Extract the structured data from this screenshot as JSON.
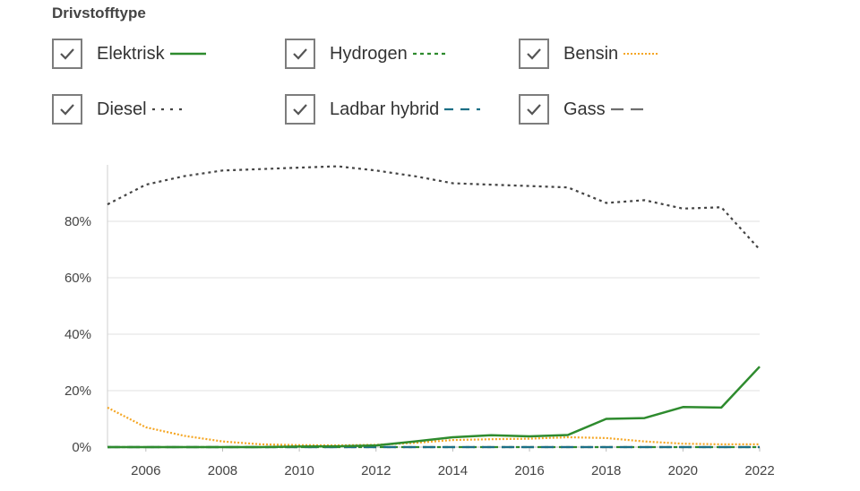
{
  "filter": {
    "title": "Drivstofftype",
    "items": [
      {
        "label": "Elektrisk",
        "checked": true
      },
      {
        "label": "Hydrogen",
        "checked": true
      },
      {
        "label": "Bensin",
        "checked": true
      },
      {
        "label": "Diesel",
        "checked": true
      },
      {
        "label": "Ladbar hybrid",
        "checked": true
      },
      {
        "label": "Gass",
        "checked": true
      }
    ]
  },
  "chart_data": {
    "type": "line",
    "x": [
      2005,
      2006,
      2007,
      2008,
      2009,
      2010,
      2011,
      2012,
      2013,
      2014,
      2015,
      2016,
      2017,
      2018,
      2019,
      2020,
      2021,
      2022
    ],
    "xticks": [
      "2006",
      "2008",
      "2010",
      "2012",
      "2014",
      "2016",
      "2018",
      "2020",
      "2022"
    ],
    "yticks": [
      "0%",
      "20%",
      "40%",
      "60%",
      "80%"
    ],
    "ylim": [
      0,
      100
    ],
    "grid": true,
    "legend_position": "top",
    "series": [
      {
        "name": "Elektrisk",
        "color": "#2e8b2e",
        "dash": "solid",
        "values": [
          0,
          0,
          0,
          0,
          0,
          0.2,
          0.3,
          0.6,
          2,
          3.5,
          4.2,
          3.8,
          4.3,
          10,
          10.3,
          14.2,
          14,
          28.5
        ]
      },
      {
        "name": "Hydrogen",
        "color": "#2e8b2e",
        "dash": "dash",
        "values": [
          0,
          0,
          0,
          0,
          0,
          0,
          0,
          0,
          0,
          0,
          0,
          0,
          0,
          0,
          0,
          0,
          0,
          0
        ]
      },
      {
        "name": "Bensin",
        "color": "#f5a623",
        "dash": "dot",
        "values": [
          14,
          7,
          4,
          2,
          1,
          0.7,
          0.6,
          0.8,
          1.5,
          2.5,
          2.8,
          3,
          3.5,
          3.2,
          2,
          1.2,
          1,
          1
        ]
      },
      {
        "name": "Diesel",
        "color": "#444444",
        "dash": "dot",
        "values": [
          86,
          93,
          96,
          98,
          98.5,
          99,
          99.5,
          98,
          96,
          93.5,
          93,
          92.5,
          92,
          86.5,
          87.5,
          84.5,
          85,
          70
        ]
      },
      {
        "name": "Ladbar hybrid",
        "color": "#1b6f86",
        "dash": "longdash",
        "values": [
          0,
          0,
          0,
          0,
          0,
          0,
          0,
          0,
          0,
          0,
          0,
          0,
          0,
          0,
          0,
          0,
          0,
          0
        ]
      },
      {
        "name": "Gass",
        "color": "#6e6e6e",
        "dash": "longdash",
        "values": [
          0,
          0,
          0,
          0,
          0,
          0,
          0,
          0,
          0,
          0,
          0,
          0,
          0,
          0,
          0,
          0,
          0,
          0
        ]
      }
    ]
  }
}
